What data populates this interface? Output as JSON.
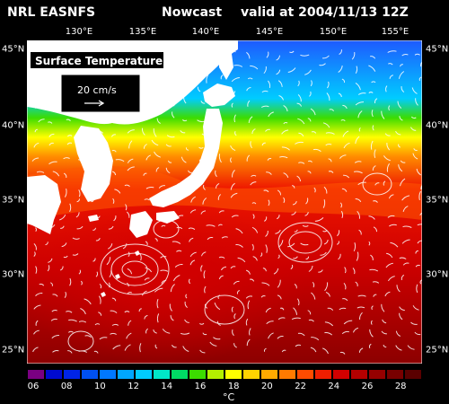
{
  "header": {
    "source": "NRL EASNFS",
    "product": "Nowcast",
    "valid": "valid at 2004/11/13 12Z"
  },
  "map": {
    "field_label": "Surface Temperature",
    "vector_scale_label": "20 cm/s",
    "longitude_labels": [
      "130°E",
      "135°E",
      "140°E",
      "145°E",
      "150°E",
      "155°E"
    ],
    "latitude_labels": [
      "45°N",
      "40°N",
      "35°N",
      "30°N",
      "25°N"
    ],
    "land_color": "#ffffff",
    "warm_color": "#cc0000",
    "cold_color": "#1e5aff"
  },
  "colorbar": {
    "colors": [
      "#7a0082",
      "#000ad0",
      "#0024e6",
      "#0050f0",
      "#0078ff",
      "#00a6ff",
      "#00ccff",
      "#00e6c8",
      "#00dc64",
      "#3cdc00",
      "#b4f000",
      "#ffff00",
      "#ffd400",
      "#ffaa00",
      "#ff7a00",
      "#ff4b00",
      "#f01e00",
      "#d20000",
      "#b40000",
      "#960000",
      "#780000",
      "#5a0000"
    ],
    "tick_labels": [
      "06",
      "08",
      "10",
      "12",
      "14",
      "16",
      "18",
      "20",
      "22",
      "24",
      "26",
      "28"
    ],
    "unit": "°C"
  }
}
